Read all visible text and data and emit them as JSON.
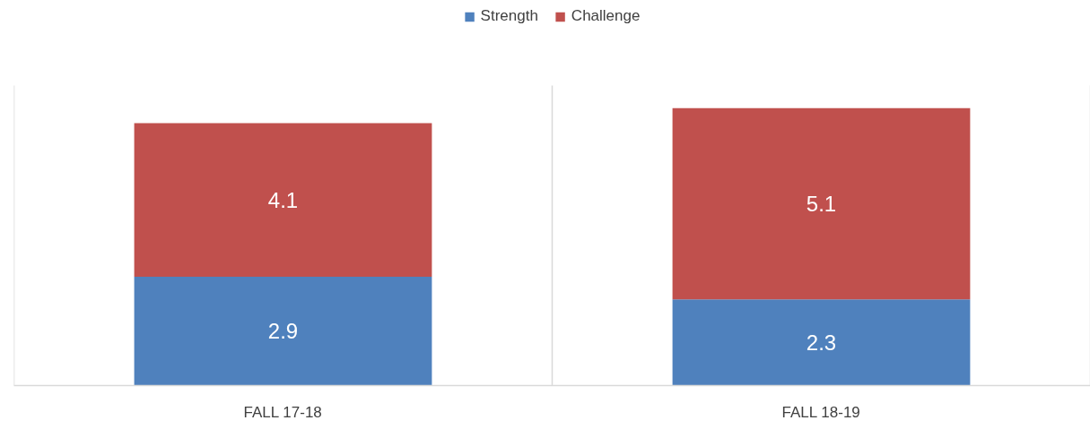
{
  "chart_data": {
    "type": "bar",
    "categories": [
      "FALL 17-18",
      "FALL 18-19"
    ],
    "series": [
      {
        "name": "Strength",
        "color": "#4f81bd",
        "values": [
          2.9,
          2.3
        ]
      },
      {
        "name": "Challenge",
        "color": "#c0504d",
        "values": [
          4.1,
          5.1
        ]
      }
    ],
    "stacked": true,
    "data_labels": true,
    "ylim": [
      0,
      8
    ],
    "grid": "x",
    "legend": "top",
    "tick_labels": "x"
  }
}
